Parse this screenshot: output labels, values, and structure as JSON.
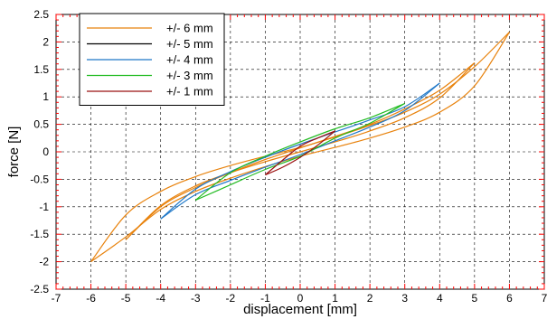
{
  "chart_data": {
    "type": "line",
    "title": "",
    "xlabel": "displacement [mm]",
    "ylabel": "force [N]",
    "xlim": [
      -7,
      7
    ],
    "ylim": [
      -2.5,
      2.5
    ],
    "x_ticks": [
      -7,
      -6,
      -5,
      -4,
      -3,
      -2,
      -1,
      0,
      1,
      2,
      3,
      4,
      5,
      6,
      7
    ],
    "y_ticks": [
      -2.5,
      -2,
      -1.5,
      -1,
      -0.5,
      0,
      0.5,
      1,
      1.5,
      2,
      2.5
    ],
    "x_tick_labels": [
      "-7",
      "-6",
      "-5",
      "-4",
      "-3",
      "-2",
      "-1",
      "0",
      "1",
      "2",
      "3",
      "4",
      "5",
      "6",
      "7"
    ],
    "y_tick_labels": [
      "-2.5",
      "-2",
      "-1.5",
      "-1",
      "-0.5",
      "0",
      "0.5",
      "1",
      "1.5",
      "2",
      "2.5"
    ],
    "grid": true,
    "legend_position": "top-left",
    "series": [
      {
        "name": "+/- 6 mm",
        "color": "#e8820c",
        "loops": [
          {
            "upper": [
              [
                -6,
                -2.0
              ],
              [
                -5,
                -1.15
              ],
              [
                -4,
                -0.72
              ],
              [
                -3,
                -0.45
              ],
              [
                -2,
                -0.25
              ],
              [
                -1,
                -0.08
              ],
              [
                0,
                0.08
              ],
              [
                1,
                0.27
              ],
              [
                2,
                0.48
              ],
              [
                3,
                0.72
              ],
              [
                4,
                1.05
              ],
              [
                5,
                1.55
              ],
              [
                6,
                2.18
              ]
            ],
            "lower": [
              [
                6,
                2.18
              ],
              [
                5,
                1.2
              ],
              [
                4,
                0.72
              ],
              [
                3,
                0.45
              ],
              [
                2,
                0.25
              ],
              [
                1,
                0.08
              ],
              [
                0,
                -0.08
              ],
              [
                -1,
                -0.27
              ],
              [
                -2,
                -0.48
              ],
              [
                -3,
                -0.72
              ],
              [
                -4,
                -1.05
              ],
              [
                -5,
                -1.55
              ],
              [
                -6,
                -2.0
              ]
            ]
          },
          {
            "upper": [
              [
                -5,
                -1.6
              ],
              [
                -4,
                -0.98
              ],
              [
                -3,
                -0.62
              ],
              [
                -2,
                -0.38
              ],
              [
                -1,
                -0.18
              ],
              [
                0,
                0.0
              ],
              [
                1,
                0.18
              ],
              [
                2,
                0.38
              ],
              [
                3,
                0.62
              ],
              [
                4,
                0.98
              ],
              [
                5,
                1.62
              ]
            ],
            "lower": [
              [
                5,
                1.62
              ],
              [
                4,
                1.12
              ],
              [
                3,
                0.78
              ],
              [
                2,
                0.5
              ],
              [
                1,
                0.28
              ],
              [
                0,
                0.07
              ],
              [
                -1,
                -0.14
              ],
              [
                -2,
                -0.38
              ],
              [
                -3,
                -0.65
              ],
              [
                -4,
                -1.0
              ],
              [
                -5,
                -1.6
              ]
            ]
          }
        ]
      },
      {
        "name": "+/- 5 mm",
        "color": "#000000",
        "loops": []
      },
      {
        "name": "+/- 4 mm",
        "color": "#1f78c8",
        "loops": [
          {
            "upper": [
              [
                -4,
                -1.22
              ],
              [
                -3,
                -0.78
              ],
              [
                -2,
                -0.52
              ],
              [
                -1,
                -0.28
              ],
              [
                0,
                -0.05
              ],
              [
                1,
                0.2
              ],
              [
                2,
                0.45
              ],
              [
                3,
                0.75
              ],
              [
                4,
                1.25
              ]
            ],
            "lower": [
              [
                4,
                1.25
              ],
              [
                3,
                0.82
              ],
              [
                2,
                0.58
              ],
              [
                1,
                0.36
              ],
              [
                0,
                0.14
              ],
              [
                -1,
                -0.1
              ],
              [
                -2,
                -0.36
              ],
              [
                -3,
                -0.68
              ],
              [
                -4,
                -1.22
              ]
            ]
          }
        ]
      },
      {
        "name": "+/- 3 mm",
        "color": "#22bb22",
        "loops": [
          {
            "upper": [
              [
                -3,
                -0.88
              ],
              [
                -2,
                -0.6
              ],
              [
                -1,
                -0.32
              ],
              [
                0,
                -0.08
              ],
              [
                1,
                0.25
              ],
              [
                2,
                0.52
              ],
              [
                3,
                0.88
              ]
            ],
            "lower": [
              [
                3,
                0.88
              ],
              [
                2,
                0.62
              ],
              [
                1,
                0.42
              ],
              [
                0,
                0.18
              ],
              [
                -1,
                -0.08
              ],
              [
                -2,
                -0.38
              ],
              [
                -3,
                -0.88
              ]
            ]
          }
        ]
      },
      {
        "name": "+/- 1 mm",
        "color": "#9b1010",
        "loops": [
          {
            "upper": [
              [
                -1,
                -0.42
              ],
              [
                -0.5,
                -0.28
              ],
              [
                0,
                -0.1
              ],
              [
                0.5,
                0.12
              ],
              [
                1,
                0.38
              ]
            ],
            "lower": [
              [
                1,
                0.38
              ],
              [
                0.5,
                0.25
              ],
              [
                0,
                0.1
              ],
              [
                -0.5,
                -0.15
              ],
              [
                -1,
                -0.42
              ]
            ]
          }
        ]
      }
    ]
  }
}
